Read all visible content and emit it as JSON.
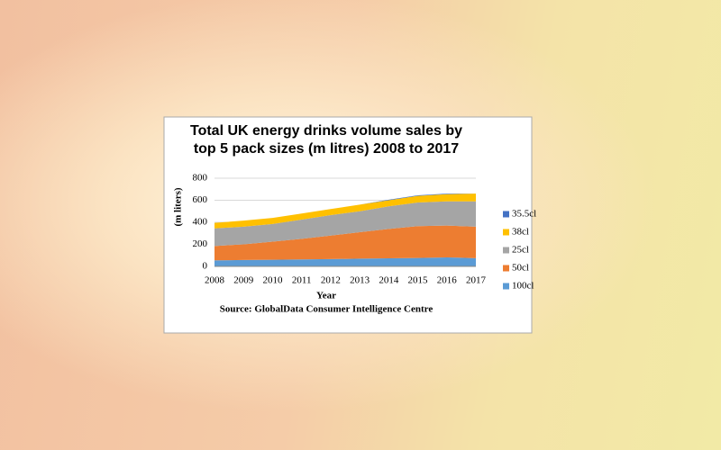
{
  "chart_data": {
    "type": "stacked-area",
    "title": "Total UK energy drinks volume sales by top 5 pack sizes (m litres) 2008 to 2017",
    "x_label": "Year",
    "y_label": "(m liters)",
    "source": "Source:  GlobalData  Consumer Intelligence Centre",
    "categories": [
      "2008",
      "2009",
      "2010",
      "2011",
      "2012",
      "2013",
      "2014",
      "2015",
      "2016",
      "2017"
    ],
    "series": [
      {
        "name": "100cl",
        "color": "#5b9bd5",
        "values": [
          55,
          58,
          60,
          63,
          66,
          70,
          73,
          77,
          82,
          75
        ]
      },
      {
        "name": "50cl",
        "color": "#ed7d31",
        "values": [
          130,
          142,
          165,
          187,
          214,
          240,
          267,
          288,
          288,
          285
        ]
      },
      {
        "name": "25cl",
        "color": "#a5a5a5",
        "values": [
          160,
          160,
          160,
          175,
          185,
          190,
          205,
          215,
          220,
          230
        ]
      },
      {
        "name": "38cl",
        "color": "#ffc000",
        "values": [
          50,
          55,
          55,
          55,
          55,
          60,
          55,
          60,
          65,
          70
        ]
      },
      {
        "name": "35.5cl",
        "color": "#4472c4",
        "values": [
          0,
          0,
          0,
          0,
          0,
          0,
          5,
          5,
          5,
          0
        ]
      }
    ],
    "ylim": [
      0,
      800
    ],
    "yticks": [
      0,
      200,
      400,
      600,
      800
    ],
    "grid": true,
    "legend": "right"
  }
}
